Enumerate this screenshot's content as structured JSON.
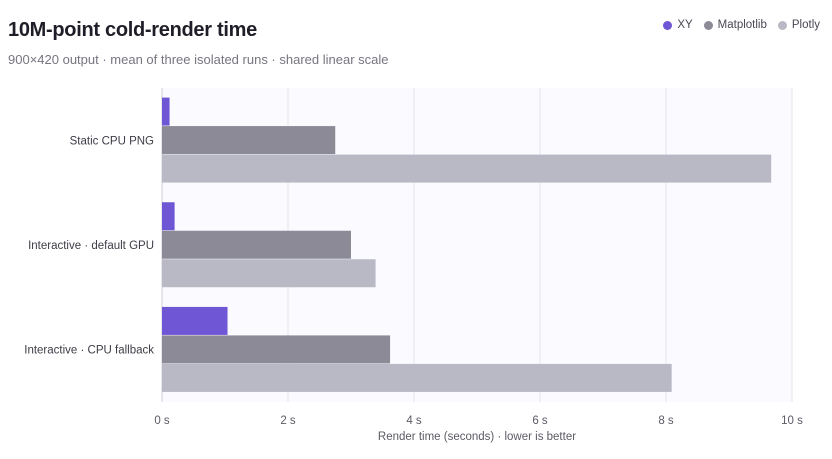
{
  "chart_data": {
    "type": "bar",
    "orientation": "horizontal",
    "title": "10M-point cold-render time",
    "subtitle": "900×420 output · mean of three isolated runs · shared linear scale",
    "xlabel": "Render time (seconds) · lower is better",
    "ylabel": "",
    "xlim": [
      0,
      10
    ],
    "x_ticks": [
      {
        "value": 0,
        "label": "0 s"
      },
      {
        "value": 2,
        "label": "2 s"
      },
      {
        "value": 4,
        "label": "4 s"
      },
      {
        "value": 6,
        "label": "6 s"
      },
      {
        "value": 8,
        "label": "8 s"
      },
      {
        "value": 10,
        "label": "10 s"
      }
    ],
    "grid": true,
    "legend_position": "top-right",
    "categories": [
      "Static CPU PNG",
      "Interactive · default GPU",
      "Interactive · CPU fallback"
    ],
    "series": [
      {
        "name": "XY",
        "color": "#6e56d4",
        "values": [
          0.12,
          0.2,
          1.04
        ]
      },
      {
        "name": "Matplotlib",
        "color": "#8c8a96",
        "values": [
          2.75,
          3.0,
          3.62
        ]
      },
      {
        "name": "Plotly",
        "color": "#b9b8c5",
        "values": [
          9.67,
          3.39,
          8.09
        ]
      }
    ]
  }
}
